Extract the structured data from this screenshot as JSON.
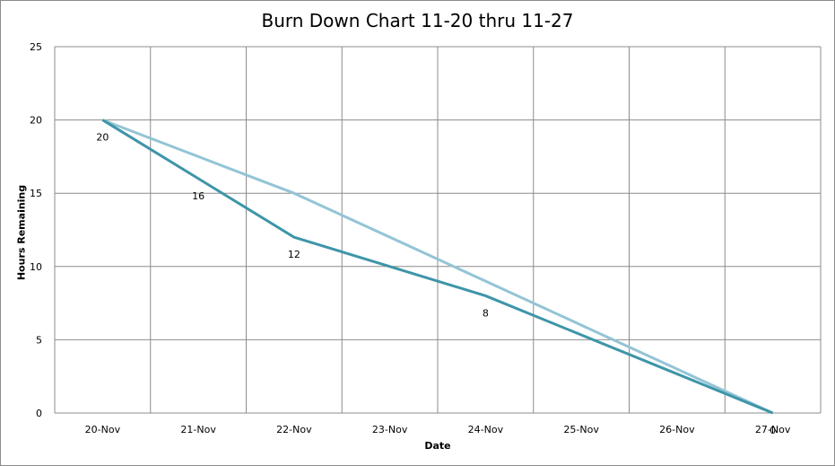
{
  "chart_data": {
    "type": "line",
    "title": "Burn Down Chart 11-20 thru 11-27",
    "xlabel": "Date",
    "ylabel": "Hours Remaining",
    "categories": [
      "20-Nov",
      "21-Nov",
      "22-Nov",
      "23-Nov",
      "24-Nov",
      "25-Nov",
      "26-Nov",
      "27-Nov"
    ],
    "ylim": [
      0,
      25
    ],
    "yticks": [
      0,
      5,
      10,
      15,
      20,
      25
    ],
    "grid": true,
    "series": [
      {
        "values": [
          20,
          16,
          12,
          10,
          8,
          5.33,
          2.67,
          0
        ],
        "color": "#3e95a8",
        "data_labels": [
          "20",
          "16",
          "12",
          null,
          "8",
          null,
          null,
          "0"
        ]
      },
      {
        "values": [
          20,
          17.5,
          15,
          12,
          9,
          6,
          3,
          0
        ],
        "color": "#93c4d6",
        "data_labels": [
          null,
          null,
          null,
          null,
          null,
          null,
          null,
          null
        ]
      }
    ]
  }
}
